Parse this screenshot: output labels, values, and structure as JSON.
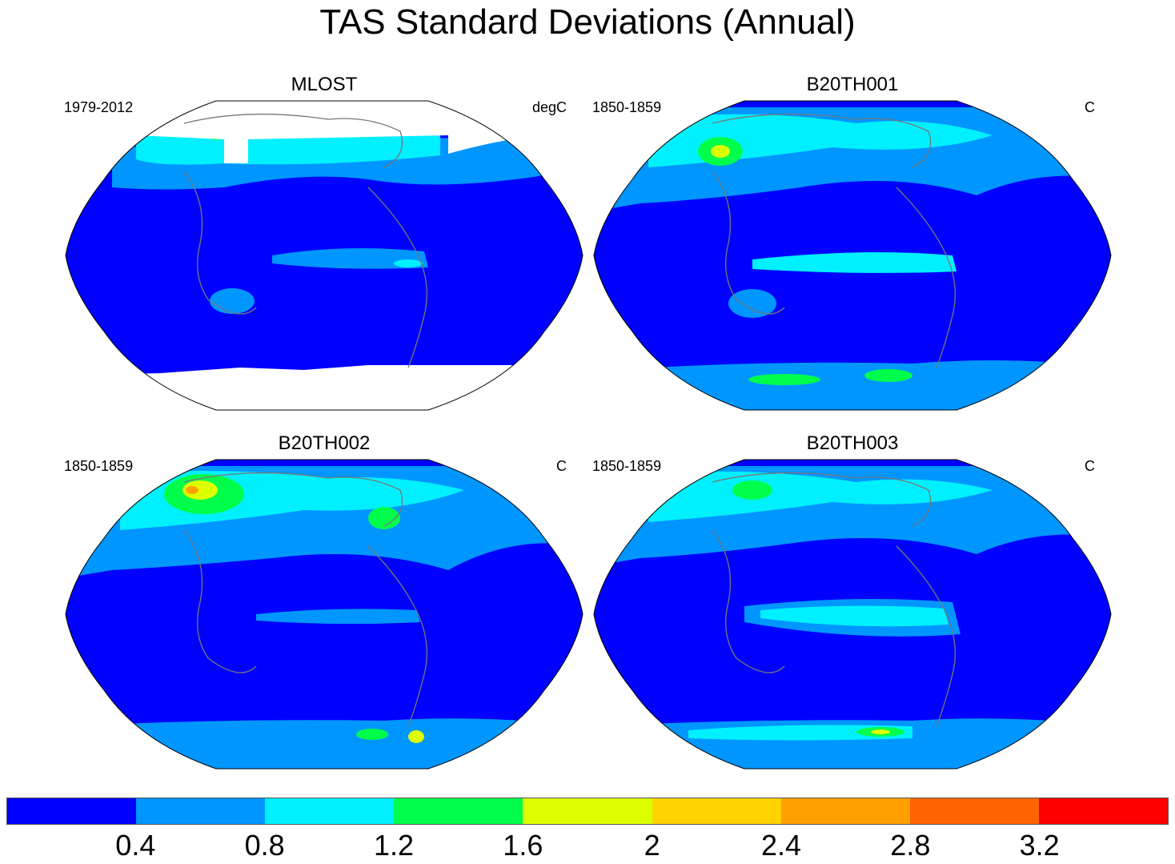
{
  "title": "TAS Standard Deviations (Annual)",
  "panels": [
    {
      "name": "MLOST",
      "period": "1979-2012",
      "units": "degC",
      "masked_polar": true
    },
    {
      "name": "B20TH001",
      "period": "1850-1859",
      "units": "C",
      "masked_polar": false
    },
    {
      "name": "B20TH002",
      "period": "1850-1859",
      "units": "C",
      "masked_polar": false
    },
    {
      "name": "B20TH003",
      "period": "1850-1859",
      "units": "C",
      "masked_polar": false
    }
  ],
  "colorbar": {
    "colors": [
      "#0000ff",
      "#0096ff",
      "#00f0ff",
      "#00ff4b",
      "#dcff00",
      "#ffd200",
      "#ffa000",
      "#ff6400",
      "#ff0000"
    ],
    "labels": [
      "0.4",
      "0.8",
      "1.2",
      "1.6",
      "2",
      "2.4",
      "2.8",
      "3.2"
    ]
  }
}
